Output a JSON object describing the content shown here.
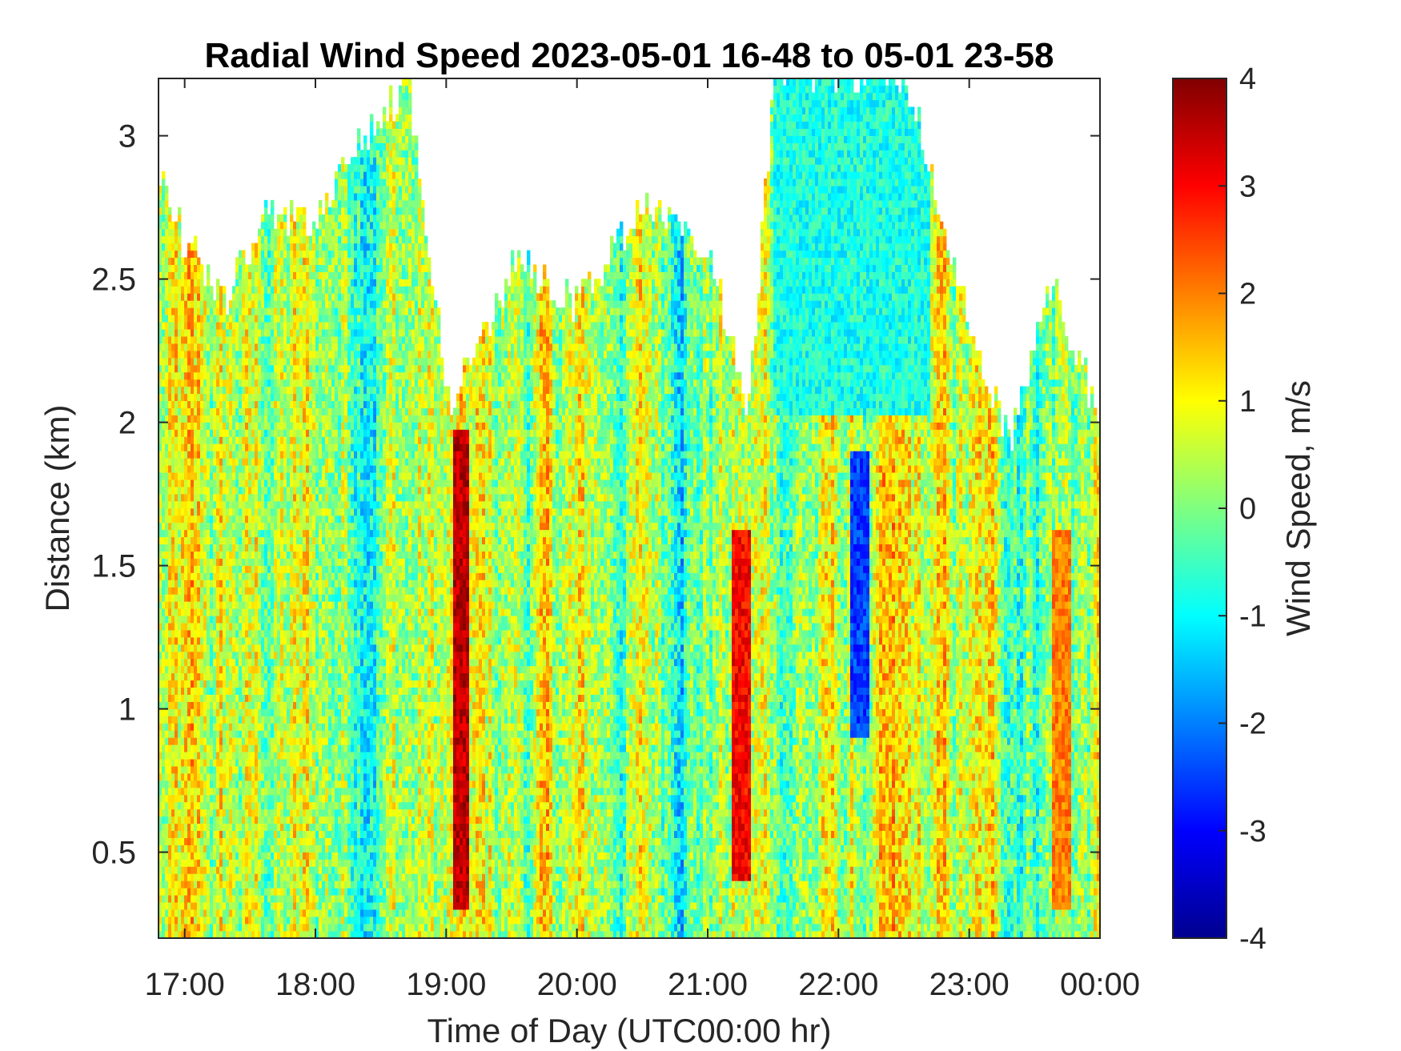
{
  "chart_data": {
    "type": "heatmap",
    "title": "Radial Wind Speed 2023-05-01 16-48 to 05-01 23-58",
    "xlabel": "Time of Day (UTC00:00 hr)",
    "ylabel": "Distance (km)",
    "xlim": [
      16.8,
      24.0
    ],
    "ylim": [
      0.2,
      3.2
    ],
    "x_ticks": [
      17,
      18,
      19,
      20,
      21,
      22,
      23,
      24
    ],
    "x_tick_labels": [
      "17:00",
      "18:00",
      "19:00",
      "20:00",
      "21:00",
      "22:00",
      "23:00",
      "00:00"
    ],
    "y_ticks": [
      0.5,
      1,
      1.5,
      2,
      2.5,
      3
    ],
    "y_tick_labels": [
      "0.5",
      "1",
      "1.5",
      "2",
      "2.5",
      "3"
    ],
    "colorbar": {
      "label": "Wind Speed, m/s",
      "range": [
        -4,
        4
      ],
      "colormap": "jet",
      "ticks": [
        -4,
        -3,
        -2,
        -1,
        0,
        1,
        2,
        3,
        4
      ],
      "tick_labels": [
        "-4",
        "-3",
        "-2",
        "-1",
        "0",
        "1",
        "2",
        "3",
        "4"
      ]
    },
    "grid": false,
    "data_extent_km": [
      {
        "time": 16.8,
        "top": 2.85
      },
      {
        "time": 17.0,
        "top": 2.6
      },
      {
        "time": 17.3,
        "top": 2.4
      },
      {
        "time": 17.6,
        "top": 2.7
      },
      {
        "time": 18.0,
        "top": 2.7
      },
      {
        "time": 18.3,
        "top": 2.95
      },
      {
        "time": 18.7,
        "top": 3.15
      },
      {
        "time": 19.0,
        "top": 2.05
      },
      {
        "time": 19.5,
        "top": 2.55
      },
      {
        "time": 20.0,
        "top": 2.4
      },
      {
        "time": 20.5,
        "top": 2.75
      },
      {
        "time": 21.0,
        "top": 2.6
      },
      {
        "time": 21.3,
        "top": 2.0
      },
      {
        "time": 21.5,
        "top": 3.2
      },
      {
        "time": 22.0,
        "top": 3.2
      },
      {
        "time": 22.5,
        "top": 3.2
      },
      {
        "time": 23.0,
        "top": 2.3
      },
      {
        "time": 23.3,
        "top": 1.9
      },
      {
        "time": 23.6,
        "top": 2.5
      },
      {
        "time": 24.0,
        "top": 2.0
      }
    ],
    "notable_features": [
      {
        "time": 19.1,
        "from_km": 0.3,
        "to_km": 1.95,
        "value": 3.5
      },
      {
        "time": 21.25,
        "from_km": 0.4,
        "to_km": 1.6,
        "value": 3.0
      },
      {
        "time": 22.15,
        "from_km": 0.9,
        "to_km": 1.9,
        "value": -2.5
      },
      {
        "time": 23.7,
        "from_km": 0.3,
        "to_km": 1.6,
        "value": 2.0
      }
    ]
  }
}
